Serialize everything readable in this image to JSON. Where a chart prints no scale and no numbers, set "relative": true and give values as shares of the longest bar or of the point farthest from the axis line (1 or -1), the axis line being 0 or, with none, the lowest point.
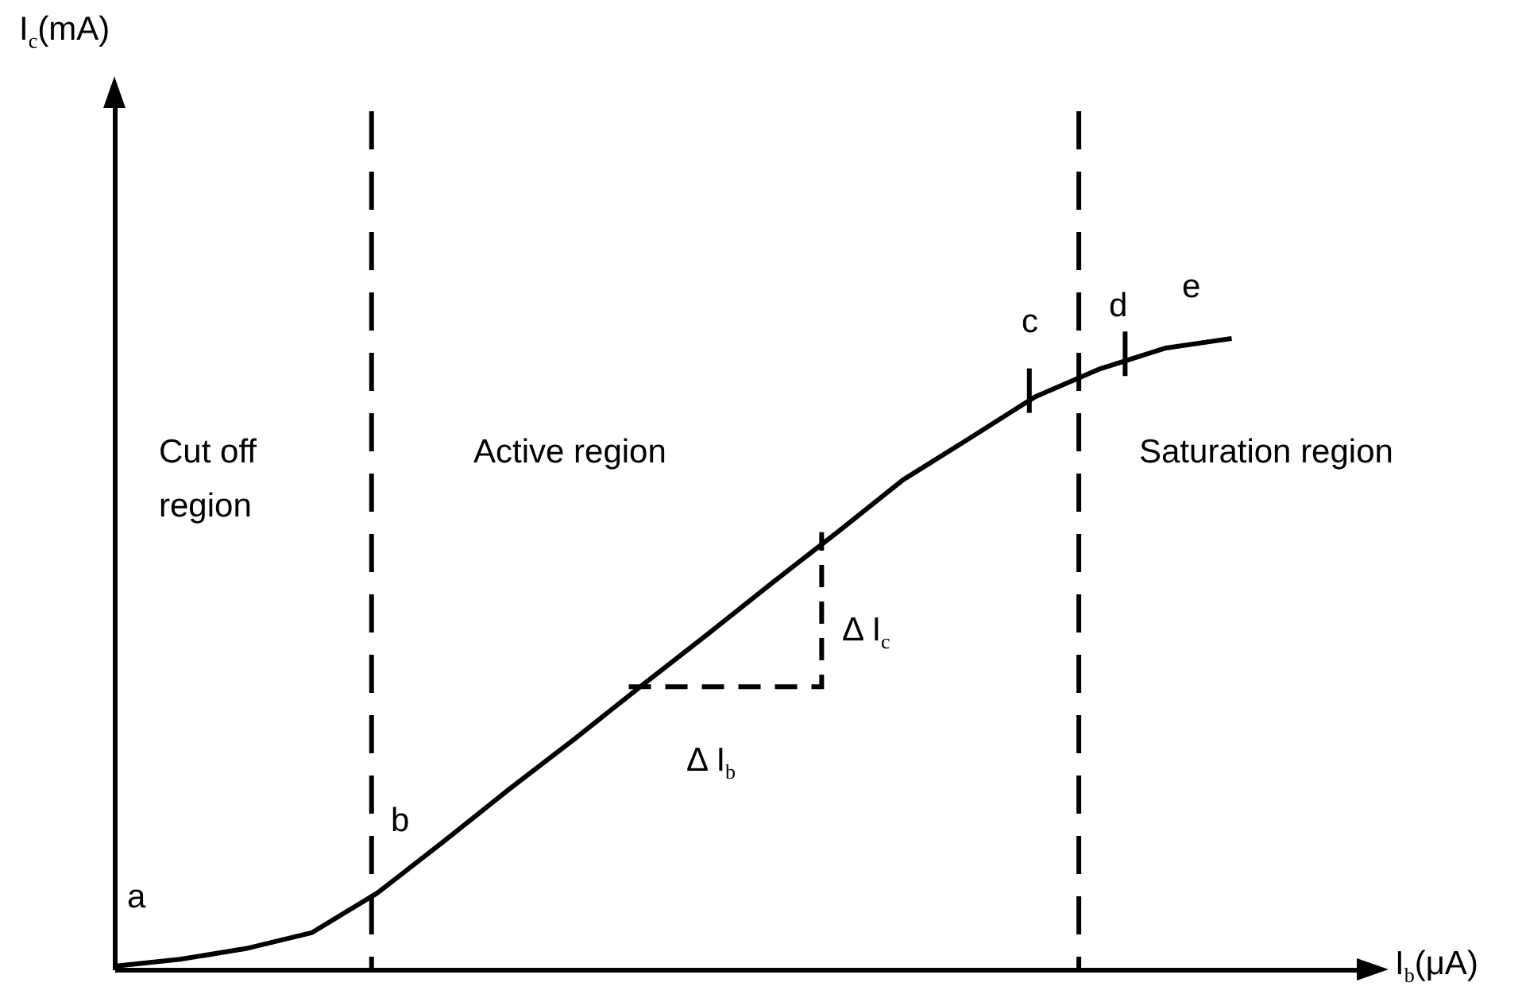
{
  "chart_data": {
    "type": "line",
    "relative": true,
    "xlabel": "I$_{b}$(μA)",
    "line_style": "solid",
    "categories": [
      null,
      null,
      null,
      null,
      null,
      null,
      null,
      null,
      null,
      null,
      null,
      null,
      null,
      null,
      null,
      null,
      null,
      null
    ],
    "series": [
      {
        "color": "#000000",
        "values": [
          0.005,
          0.016,
          0.033,
          0.058,
          0.121,
          0.202,
          0.285,
          0.365,
          0.448,
          0.529,
          0.612,
          0.693,
          0.776,
          0.841,
          0.907,
          0.952,
          0.985,
          1
        ]
      }
    ],
    "annotations": [
      "I$_{c}$(mA)",
      "a",
      "b",
      "c",
      "d",
      "e",
      "Cut off\nregion",
      "Active region",
      "Saturation region",
      "Δ I$_{c}$",
      "Δ I$_{b}$"
    ]
  }
}
